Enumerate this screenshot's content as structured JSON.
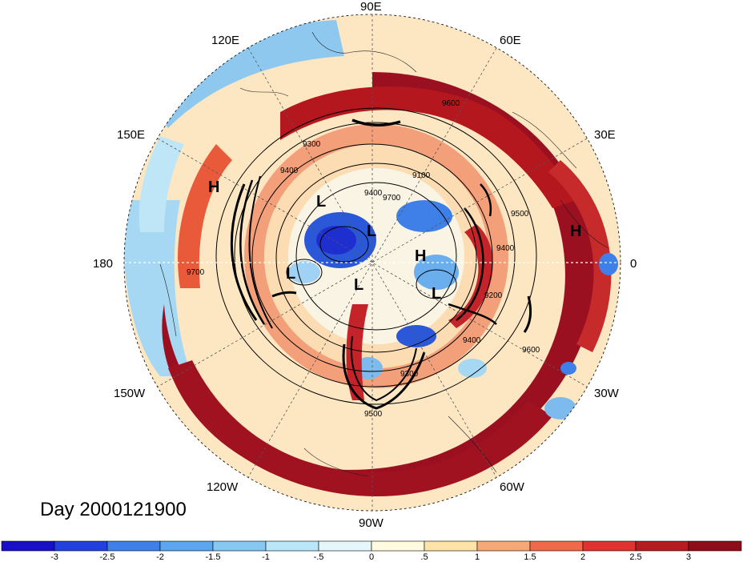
{
  "title": "Day 2000121900",
  "longitude_labels": {
    "top": "90E",
    "upper_left": "120E",
    "upper_right": "60E",
    "left_upper": "150E",
    "right_upper": "30E",
    "left": "180",
    "right": "0",
    "left_lower": "150W",
    "right_lower": "30W",
    "lower_left": "120W",
    "lower_right": "60W",
    "bottom": "90W"
  },
  "contour_labels": [
    "9600",
    "9300",
    "9100",
    "9700",
    "9400",
    "9500",
    "9400",
    "9700",
    "9200",
    "9400",
    "9300",
    "9500",
    "9600",
    "9400"
  ],
  "pressure_systems": [
    "H",
    "L",
    "L",
    "L",
    "H",
    "L",
    "L",
    "H"
  ],
  "colorbar": {
    "ticks": [
      "-3",
      "-2.5",
      "-2",
      "-1.5",
      "-1",
      "-.5",
      "0",
      ".5",
      "1",
      "1.5",
      "2",
      "2.5",
      "3"
    ],
    "colors": [
      "#1a0fc8",
      "#2240e0",
      "#3f7fe8",
      "#5ba6ee",
      "#86c8f2",
      "#b9e6f8",
      "#e6f7fb",
      "#fffbe0",
      "#fde3a8",
      "#f6a877",
      "#ee6a4a",
      "#e0322e",
      "#b51c22",
      "#8e0d1a"
    ]
  }
}
